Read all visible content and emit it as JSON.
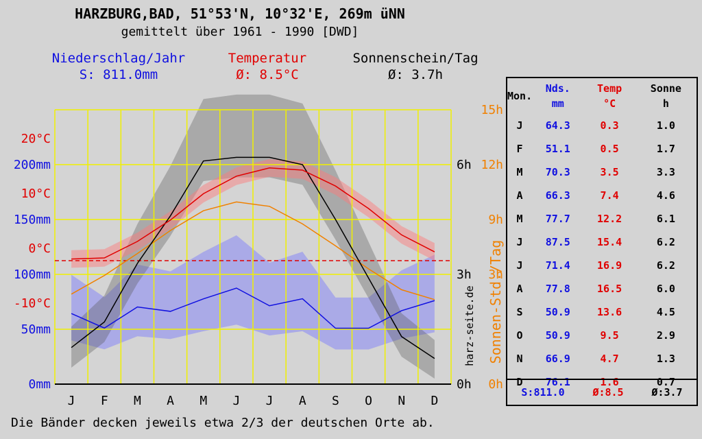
{
  "title": "HARZBURG,BAD, 51°53'N, 10°32'E, 269m üNN",
  "subtitle": "gemittelt über 1961 - 1990 [DWD]",
  "headers": {
    "precip_label": "Niederschlag/Jahr",
    "precip_value": "S: 811.0mm",
    "temp_label": "Temperatur",
    "temp_value": "Ø: 8.5°C",
    "sun_label": "Sonnenschein/Tag",
    "sun_value": "Ø: 3.7h"
  },
  "colors": {
    "precip": "#1010e0",
    "temp": "#e00000",
    "sun": "#000000",
    "daylength": "#f08000",
    "grid": "#f0f000"
  },
  "watermark": "harz-seite.de",
  "sun_axis_label": "Sonnen-Std./Tag",
  "footer": "Die Bänder decken jeweils etwa 2/3 der deutschen Orte ab.",
  "chart_data": {
    "type": "line",
    "x": [
      "J",
      "F",
      "M",
      "A",
      "M",
      "J",
      "J",
      "A",
      "S",
      "O",
      "N",
      "D"
    ],
    "series": [
      {
        "name": "Niederschlag",
        "unit": "mm",
        "values": [
          64.3,
          51.1,
          70.3,
          66.3,
          77.7,
          87.5,
          71.4,
          77.8,
          50.9,
          50.9,
          66.9,
          76.1
        ]
      },
      {
        "name": "Temperatur",
        "unit": "°C",
        "values": [
          0.3,
          0.5,
          3.5,
          7.4,
          12.2,
          15.4,
          16.9,
          16.5,
          13.6,
          9.5,
          4.7,
          1.6
        ]
      },
      {
        "name": "Sonnenschein",
        "unit": "h",
        "values": [
          1.0,
          1.7,
          3.3,
          4.6,
          6.1,
          6.2,
          6.2,
          6.0,
          4.5,
          2.9,
          1.3,
          0.7
        ]
      }
    ],
    "daylength_h": [
      8.2,
      9.9,
      11.9,
      14.0,
      15.8,
      16.6,
      16.2,
      14.6,
      12.6,
      10.5,
      8.6,
      7.7
    ],
    "left_temp_ticks": [
      "20°C",
      "10°C",
      "0°C",
      "-10°C"
    ],
    "left_precip_ticks": [
      "200mm",
      "150mm",
      "100mm",
      "50mm",
      "0mm"
    ],
    "right_sun_ticks": [
      "6h",
      "3h",
      "0h"
    ],
    "right_day_ticks": [
      "15h",
      "12h",
      "9h",
      "3h",
      "0h"
    ],
    "precip_ylim": [
      0,
      250
    ],
    "temp_ylim": [
      -22.5,
      27.5
    ],
    "sun_ylim": [
      0,
      7.5
    ],
    "daylength_ylim": [
      0,
      15
    ],
    "grid": true
  },
  "table": {
    "headers": [
      [
        "Mon.",
        ""
      ],
      [
        "Nds.",
        "mm"
      ],
      [
        "Temp",
        "°C"
      ],
      [
        "Sonne",
        "h"
      ]
    ],
    "rows": [
      [
        "J",
        "64.3",
        "0.3",
        "1.0"
      ],
      [
        "F",
        "51.1",
        "0.5",
        "1.7"
      ],
      [
        "M",
        "70.3",
        "3.5",
        "3.3"
      ],
      [
        "A",
        "66.3",
        "7.4",
        "4.6"
      ],
      [
        "M",
        "77.7",
        "12.2",
        "6.1"
      ],
      [
        "J",
        "87.5",
        "15.4",
        "6.2"
      ],
      [
        "J",
        "71.4",
        "16.9",
        "6.2"
      ],
      [
        "A",
        "77.8",
        "16.5",
        "6.0"
      ],
      [
        "S",
        "50.9",
        "13.6",
        "4.5"
      ],
      [
        "O",
        "50.9",
        "9.5",
        "2.9"
      ],
      [
        "N",
        "66.9",
        "4.7",
        "1.3"
      ],
      [
        "D",
        "76.1",
        "1.6",
        "0.7"
      ]
    ],
    "footer": {
      "precip": "S:811.0",
      "temp": "Ø:8.5",
      "sun": "Ø:3.7"
    }
  }
}
